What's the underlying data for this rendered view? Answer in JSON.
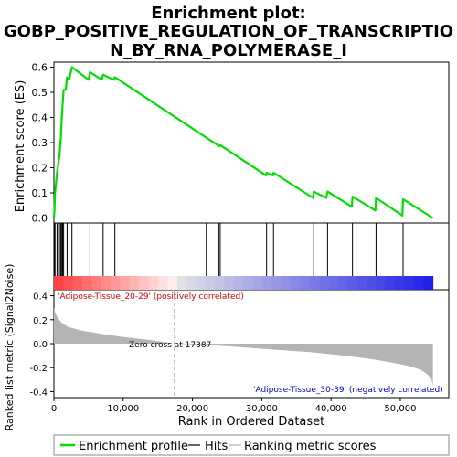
{
  "chart_data": {
    "type": "line",
    "title_lines": [
      "Enrichment plot:",
      "GOBP_POSITIVE_REGULATION_OF_TRANSCRIPTIO",
      "N_BY_RNA_POLYMERASE_I"
    ],
    "top_panel": {
      "ylabel": "Enrichment score (ES)",
      "ylim": [
        -0.02,
        0.62
      ],
      "y_ticks": [
        "0.0",
        "0.1",
        "0.2",
        "0.3",
        "0.4",
        "0.5",
        "0.6"
      ],
      "y_tick_values": [
        0.0,
        0.1,
        0.2,
        0.3,
        0.4,
        0.5,
        0.6
      ],
      "series_name": "Enrichment profile",
      "points": [
        [
          0,
          0.0
        ],
        [
          80,
          0.03
        ],
        [
          160,
          0.1
        ],
        [
          450,
          0.18
        ],
        [
          800,
          0.25
        ],
        [
          1000,
          0.32
        ],
        [
          1100,
          0.38
        ],
        [
          1250,
          0.45
        ],
        [
          1400,
          0.51
        ],
        [
          1700,
          0.51
        ],
        [
          1900,
          0.56
        ],
        [
          2200,
          0.55
        ],
        [
          2600,
          0.6
        ],
        [
          5000,
          0.55
        ],
        [
          5200,
          0.58
        ],
        [
          6900,
          0.55
        ],
        [
          7100,
          0.57
        ],
        [
          8600,
          0.55
        ],
        [
          8800,
          0.56
        ],
        [
          23900,
          0.285
        ],
        [
          24000,
          0.29
        ],
        [
          30600,
          0.17
        ],
        [
          30700,
          0.18
        ],
        [
          31600,
          0.17
        ],
        [
          31700,
          0.18
        ],
        [
          37400,
          0.08
        ],
        [
          37500,
          0.105
        ],
        [
          39300,
          0.08
        ],
        [
          39500,
          0.105
        ],
        [
          43000,
          0.045
        ],
        [
          43100,
          0.085
        ],
        [
          46400,
          0.03
        ],
        [
          46500,
          0.08
        ],
        [
          50300,
          0.01
        ],
        [
          50400,
          0.075
        ],
        [
          54700,
          0.0
        ]
      ]
    },
    "hits": [
      80,
      160,
      450,
      800,
      1000,
      1100,
      1250,
      1400,
      1900,
      2600,
      5200,
      7100,
      8800,
      22000,
      23800,
      24000,
      30700,
      31700,
      37500,
      39500,
      43100,
      46500,
      50400
    ],
    "bottom_panel": {
      "ylabel": "Ranked list metric (Signal2Noise)",
      "xlabel": "Rank in Ordered Dataset",
      "xlim": [
        0,
        57000
      ],
      "ylim": [
        -0.45,
        0.45
      ],
      "x_ticks": [
        "0",
        "10,000",
        "20,000",
        "30,000",
        "40,000",
        "50,000"
      ],
      "x_tick_values": [
        0,
        10000,
        20000,
        30000,
        40000,
        50000
      ],
      "y_ticks": [
        "0.4",
        "0.2",
        "0.0",
        "-0.2",
        "-0.4"
      ],
      "y_tick_values": [
        0.4,
        0.2,
        0.0,
        -0.2,
        -0.4
      ],
      "metric_curve": [
        [
          0,
          0.3
        ],
        [
          300,
          0.24
        ],
        [
          1000,
          0.18
        ],
        [
          2000,
          0.14
        ],
        [
          4000,
          0.11
        ],
        [
          7000,
          0.08
        ],
        [
          10000,
          0.055
        ],
        [
          14000,
          0.03
        ],
        [
          17387,
          0.0
        ],
        [
          22000,
          -0.01
        ],
        [
          27000,
          -0.03
        ],
        [
          32000,
          -0.05
        ],
        [
          37000,
          -0.07
        ],
        [
          42000,
          -0.1
        ],
        [
          46000,
          -0.13
        ],
        [
          49000,
          -0.16
        ],
        [
          51500,
          -0.19
        ],
        [
          53000,
          -0.22
        ],
        [
          54000,
          -0.26
        ],
        [
          54500,
          -0.3
        ],
        [
          54700,
          -0.35
        ]
      ],
      "zero_cross": 17387,
      "zero_cross_label": "Zero cross at 17387",
      "pos_label": "'Adipose-Tissue_20-29' (positively correlated)",
      "neg_label": "'Adipose-Tissue_30-39' (negatively correlated)"
    },
    "n_genes": 54700,
    "colors": {
      "enrichment": "#00dd00",
      "pos_label": "#dd0000",
      "neg_label": "#0000dd",
      "metric_fill": "#b4b4b4"
    },
    "legend": {
      "entries": [
        "Enrichment profile",
        "Hits",
        "Ranking metric scores"
      ],
      "placement": "bottom"
    }
  }
}
